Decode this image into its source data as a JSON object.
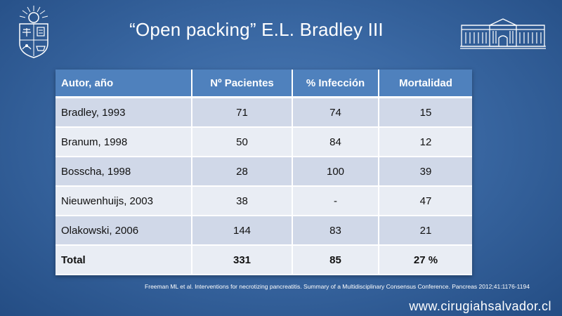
{
  "slide": {
    "title": "“Open packing” E.L. Bradley III",
    "footnote": "Freeman ML et al. Interventions for necrotizing pancreatitis. Summary of a Multidisciplinary Consensus Conference. Pancreas 2012;41:1176-1194",
    "website": "www.cirugiahsalvador.cl"
  },
  "logos": {
    "left": "university-crest-logo",
    "right": "hospital-building-logo"
  },
  "colors": {
    "background": "#3a68a3",
    "header": "#4f81bd",
    "row_dark": "#d0d8e8",
    "row_light": "#e9edf4"
  },
  "table": {
    "headers": [
      "Autor, año",
      "Nº Pacientes",
      "% Infección",
      "Mortalidad"
    ],
    "rows": [
      [
        "Bradley, 1993",
        "71",
        "74",
        "15"
      ],
      [
        "Branum, 1998",
        "50",
        "84",
        "12"
      ],
      [
        "Bosscha, 1998",
        "28",
        "100",
        "39"
      ],
      [
        "Nieuwenhuijs, 2003",
        "38",
        "-",
        "47"
      ],
      [
        "Olakowski, 2006",
        "144",
        "83",
        "21"
      ]
    ],
    "total": [
      "Total",
      "331",
      "85",
      "27 %"
    ]
  }
}
